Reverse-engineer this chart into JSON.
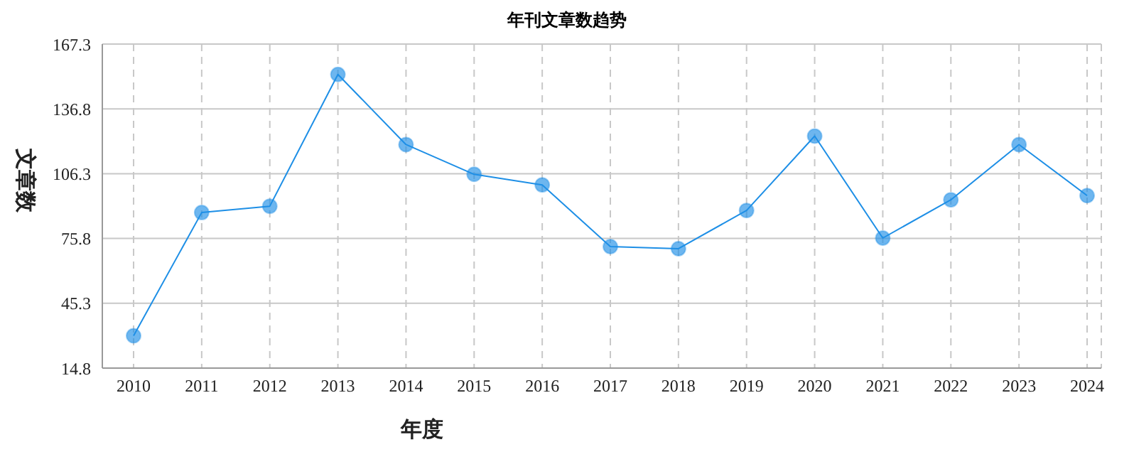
{
  "chart_data": {
    "type": "line",
    "title": "年刊文章数趋势",
    "xlabel": "年度",
    "ylabel": "文章数",
    "categories": [
      "2010",
      "2011",
      "2012",
      "2013",
      "2014",
      "2015",
      "2016",
      "2017",
      "2018",
      "2019",
      "2020",
      "2021",
      "2022",
      "2023",
      "2024"
    ],
    "series": [
      {
        "color": "#1e8fe6",
        "values": [
          30,
          88,
          91,
          153,
          120,
          106,
          101,
          72,
          71,
          89,
          124,
          76,
          94,
          120,
          96
        ]
      }
    ],
    "ylim": [
      14.8,
      167.3
    ],
    "yticks": [
      14.8,
      45.3,
      75.8,
      106.3,
      136.8,
      167.3
    ],
    "grid": true,
    "legend": false,
    "marker": "circle",
    "line_style": "solid"
  }
}
